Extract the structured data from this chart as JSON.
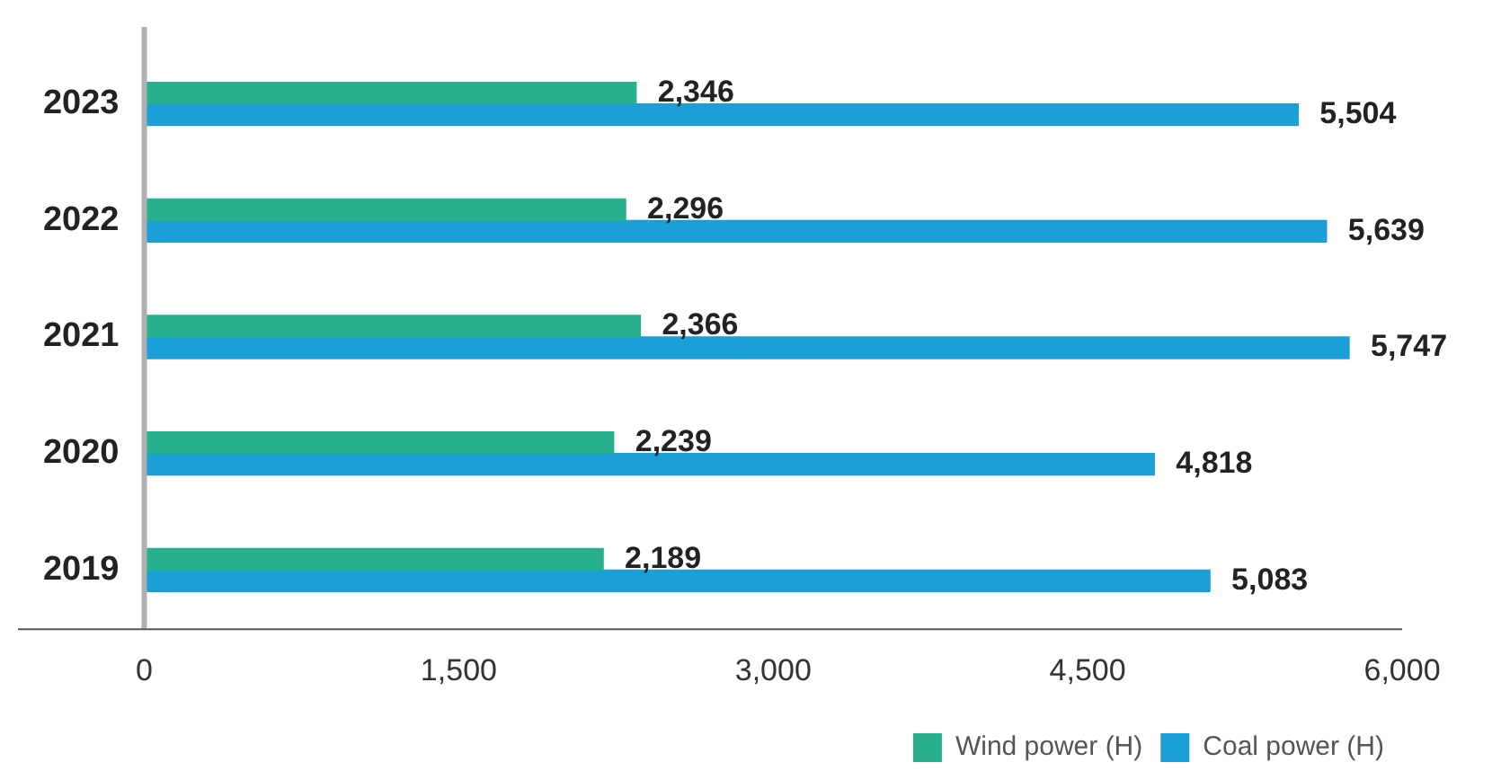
{
  "chart_data": {
    "type": "bar",
    "orientation": "horizontal",
    "categories": [
      "2023",
      "2022",
      "2021",
      "2020",
      "2019"
    ],
    "series": [
      {
        "name": "Wind power (H)",
        "color": "#26b08e",
        "values": [
          2346,
          2296,
          2366,
          2239,
          2189
        ],
        "value_labels": [
          "2,346",
          "2,296",
          "2,366",
          "2,239",
          "2,189"
        ]
      },
      {
        "name": "Coal power (H)",
        "color": "#1a9fd6",
        "values": [
          5504,
          5639,
          5747,
          4818,
          5083
        ],
        "value_labels": [
          "5,504",
          "5,639",
          "5,747",
          "4,818",
          "5,083"
        ]
      }
    ],
    "xlim": [
      0,
      6000
    ],
    "xticks": [
      0,
      {
        "value": 1500,
        "label": "1,500"
      },
      {
        "value": 3000,
        "label": "3,000"
      },
      {
        "value": 4500,
        "label": "4,500"
      },
      {
        "value": 6000,
        "label": "6,000"
      }
    ],
    "grid": false,
    "legend": "bottom right"
  }
}
